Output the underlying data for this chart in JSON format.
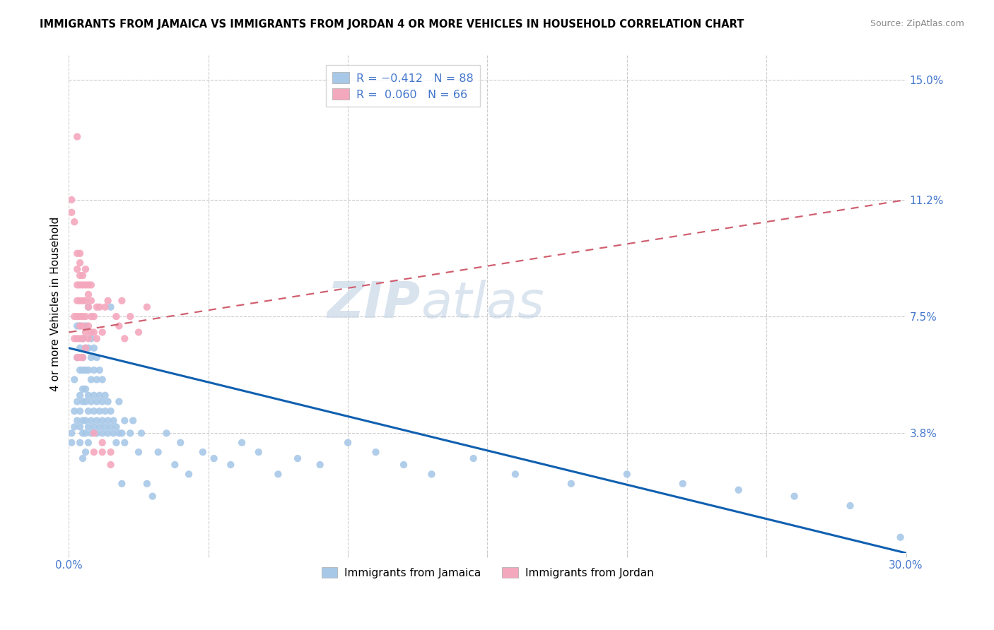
{
  "title": "IMMIGRANTS FROM JAMAICA VS IMMIGRANTS FROM JORDAN 4 OR MORE VEHICLES IN HOUSEHOLD CORRELATION CHART",
  "source": "Source: ZipAtlas.com",
  "ylabel_label": "4 or more Vehicles in Household",
  "right_yticks": [
    "15.0%",
    "11.2%",
    "7.5%",
    "3.8%"
  ],
  "right_ytick_vals": [
    0.15,
    0.112,
    0.075,
    0.038
  ],
  "xlim": [
    0.0,
    0.3
  ],
  "ylim": [
    0.0,
    0.158
  ],
  "color_jamaica": "#a8c8e8",
  "color_jordan": "#f4a8be",
  "trendline_jamaica_color": "#1060b0",
  "trendline_jordan_color": "#d06070",
  "watermark_zip": "ZIP",
  "watermark_atlas": "atlas",
  "jamaica_trendline": [
    [
      0.0,
      0.065
    ],
    [
      0.3,
      0.0
    ]
  ],
  "jordan_trendline": [
    [
      0.0,
      0.07
    ],
    [
      0.3,
      0.112
    ]
  ],
  "jamaica_points": [
    [
      0.001,
      0.038
    ],
    [
      0.001,
      0.035
    ],
    [
      0.002,
      0.04
    ],
    [
      0.002,
      0.045
    ],
    [
      0.002,
      0.055
    ],
    [
      0.003,
      0.042
    ],
    [
      0.003,
      0.048
    ],
    [
      0.003,
      0.062
    ],
    [
      0.003,
      0.072
    ],
    [
      0.004,
      0.035
    ],
    [
      0.004,
      0.04
    ],
    [
      0.004,
      0.045
    ],
    [
      0.004,
      0.05
    ],
    [
      0.004,
      0.058
    ],
    [
      0.004,
      0.065
    ],
    [
      0.004,
      0.072
    ],
    [
      0.005,
      0.03
    ],
    [
      0.005,
      0.038
    ],
    [
      0.005,
      0.042
    ],
    [
      0.005,
      0.048
    ],
    [
      0.005,
      0.052
    ],
    [
      0.005,
      0.058
    ],
    [
      0.005,
      0.062
    ],
    [
      0.005,
      0.068
    ],
    [
      0.006,
      0.032
    ],
    [
      0.006,
      0.038
    ],
    [
      0.006,
      0.042
    ],
    [
      0.006,
      0.048
    ],
    [
      0.006,
      0.052
    ],
    [
      0.006,
      0.058
    ],
    [
      0.006,
      0.065
    ],
    [
      0.006,
      0.072
    ],
    [
      0.007,
      0.035
    ],
    [
      0.007,
      0.04
    ],
    [
      0.007,
      0.045
    ],
    [
      0.007,
      0.05
    ],
    [
      0.007,
      0.058
    ],
    [
      0.007,
      0.065
    ],
    [
      0.007,
      0.078
    ],
    [
      0.008,
      0.038
    ],
    [
      0.008,
      0.042
    ],
    [
      0.008,
      0.048
    ],
    [
      0.008,
      0.055
    ],
    [
      0.008,
      0.062
    ],
    [
      0.008,
      0.068
    ],
    [
      0.009,
      0.04
    ],
    [
      0.009,
      0.045
    ],
    [
      0.009,
      0.05
    ],
    [
      0.009,
      0.058
    ],
    [
      0.009,
      0.065
    ],
    [
      0.01,
      0.038
    ],
    [
      0.01,
      0.042
    ],
    [
      0.01,
      0.048
    ],
    [
      0.01,
      0.055
    ],
    [
      0.01,
      0.062
    ],
    [
      0.011,
      0.04
    ],
    [
      0.011,
      0.045
    ],
    [
      0.011,
      0.05
    ],
    [
      0.011,
      0.058
    ],
    [
      0.012,
      0.038
    ],
    [
      0.012,
      0.042
    ],
    [
      0.012,
      0.048
    ],
    [
      0.012,
      0.055
    ],
    [
      0.013,
      0.04
    ],
    [
      0.013,
      0.045
    ],
    [
      0.013,
      0.05
    ],
    [
      0.014,
      0.038
    ],
    [
      0.014,
      0.042
    ],
    [
      0.014,
      0.048
    ],
    [
      0.015,
      0.04
    ],
    [
      0.015,
      0.045
    ],
    [
      0.015,
      0.078
    ],
    [
      0.016,
      0.038
    ],
    [
      0.016,
      0.042
    ],
    [
      0.017,
      0.035
    ],
    [
      0.017,
      0.04
    ],
    [
      0.018,
      0.038
    ],
    [
      0.018,
      0.048
    ],
    [
      0.019,
      0.022
    ],
    [
      0.019,
      0.038
    ],
    [
      0.02,
      0.035
    ],
    [
      0.02,
      0.042
    ],
    [
      0.022,
      0.038
    ],
    [
      0.023,
      0.042
    ],
    [
      0.025,
      0.032
    ],
    [
      0.026,
      0.038
    ],
    [
      0.028,
      0.022
    ],
    [
      0.03,
      0.018
    ],
    [
      0.032,
      0.032
    ],
    [
      0.035,
      0.038
    ],
    [
      0.038,
      0.028
    ],
    [
      0.04,
      0.035
    ],
    [
      0.043,
      0.025
    ],
    [
      0.048,
      0.032
    ],
    [
      0.052,
      0.03
    ],
    [
      0.058,
      0.028
    ],
    [
      0.062,
      0.035
    ],
    [
      0.068,
      0.032
    ],
    [
      0.075,
      0.025
    ],
    [
      0.082,
      0.03
    ],
    [
      0.09,
      0.028
    ],
    [
      0.1,
      0.035
    ],
    [
      0.11,
      0.032
    ],
    [
      0.12,
      0.028
    ],
    [
      0.13,
      0.025
    ],
    [
      0.145,
      0.03
    ],
    [
      0.16,
      0.025
    ],
    [
      0.18,
      0.022
    ],
    [
      0.2,
      0.025
    ],
    [
      0.22,
      0.022
    ],
    [
      0.24,
      0.02
    ],
    [
      0.26,
      0.018
    ],
    [
      0.28,
      0.015
    ],
    [
      0.298,
      0.005
    ]
  ],
  "jordan_points": [
    [
      0.001,
      0.112
    ],
    [
      0.001,
      0.108
    ],
    [
      0.002,
      0.075
    ],
    [
      0.002,
      0.068
    ],
    [
      0.002,
      0.105
    ],
    [
      0.003,
      0.062
    ],
    [
      0.003,
      0.068
    ],
    [
      0.003,
      0.075
    ],
    [
      0.003,
      0.08
    ],
    [
      0.003,
      0.085
    ],
    [
      0.003,
      0.09
    ],
    [
      0.003,
      0.095
    ],
    [
      0.003,
      0.132
    ],
    [
      0.004,
      0.062
    ],
    [
      0.004,
      0.068
    ],
    [
      0.004,
      0.072
    ],
    [
      0.004,
      0.075
    ],
    [
      0.004,
      0.08
    ],
    [
      0.004,
      0.085
    ],
    [
      0.004,
      0.088
    ],
    [
      0.004,
      0.092
    ],
    [
      0.004,
      0.095
    ],
    [
      0.005,
      0.062
    ],
    [
      0.005,
      0.068
    ],
    [
      0.005,
      0.072
    ],
    [
      0.005,
      0.075
    ],
    [
      0.005,
      0.08
    ],
    [
      0.005,
      0.085
    ],
    [
      0.005,
      0.088
    ],
    [
      0.006,
      0.065
    ],
    [
      0.006,
      0.07
    ],
    [
      0.006,
      0.075
    ],
    [
      0.006,
      0.08
    ],
    [
      0.006,
      0.085
    ],
    [
      0.006,
      0.09
    ],
    [
      0.007,
      0.068
    ],
    [
      0.007,
      0.072
    ],
    [
      0.007,
      0.078
    ],
    [
      0.007,
      0.082
    ],
    [
      0.007,
      0.085
    ],
    [
      0.008,
      0.07
    ],
    [
      0.008,
      0.075
    ],
    [
      0.008,
      0.08
    ],
    [
      0.008,
      0.085
    ],
    [
      0.009,
      0.032
    ],
    [
      0.009,
      0.038
    ],
    [
      0.009,
      0.07
    ],
    [
      0.009,
      0.075
    ],
    [
      0.01,
      0.068
    ],
    [
      0.01,
      0.078
    ],
    [
      0.011,
      0.078
    ],
    [
      0.012,
      0.07
    ],
    [
      0.012,
      0.032
    ],
    [
      0.012,
      0.035
    ],
    [
      0.013,
      0.078
    ],
    [
      0.014,
      0.08
    ],
    [
      0.015,
      0.028
    ],
    [
      0.015,
      0.032
    ],
    [
      0.017,
      0.075
    ],
    [
      0.018,
      0.072
    ],
    [
      0.019,
      0.08
    ],
    [
      0.02,
      0.068
    ],
    [
      0.022,
      0.075
    ],
    [
      0.025,
      0.07
    ],
    [
      0.028,
      0.078
    ]
  ]
}
